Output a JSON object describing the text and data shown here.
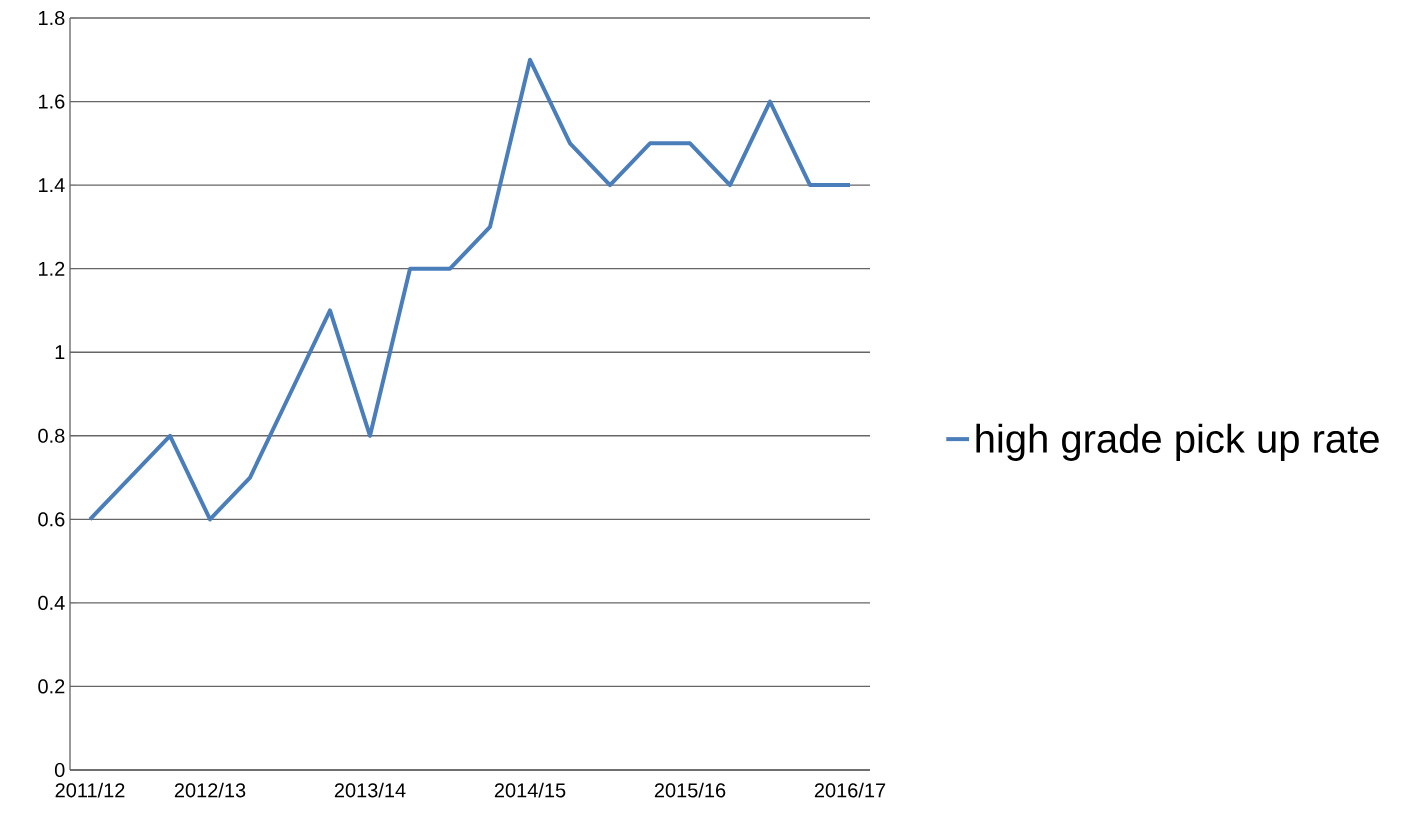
{
  "chart_data": {
    "type": "line",
    "categories": [
      "2011/12",
      null,
      null,
      "2012/13",
      null,
      null,
      null,
      "2013/14",
      null,
      null,
      null,
      "2014/15",
      null,
      null,
      null,
      "2015/16",
      null,
      null,
      null,
      "2016/17"
    ],
    "series": [
      {
        "name": "high grade pick up rate",
        "color": "#4a7ebb",
        "values": [
          0.6,
          0.7,
          0.8,
          0.6,
          0.7,
          0.9,
          1.1,
          0.8,
          1.2,
          1.2,
          1.3,
          1.7,
          1.5,
          1.4,
          1.5,
          1.5,
          1.4,
          1.6,
          1.4,
          1.4
        ]
      }
    ],
    "ylim": [
      0,
      1.8
    ],
    "yticks": [
      0,
      0.2,
      0.4,
      0.6,
      0.8,
      1,
      1.2,
      1.4,
      1.6,
      1.8
    ],
    "grid": "y",
    "legend": "right"
  }
}
